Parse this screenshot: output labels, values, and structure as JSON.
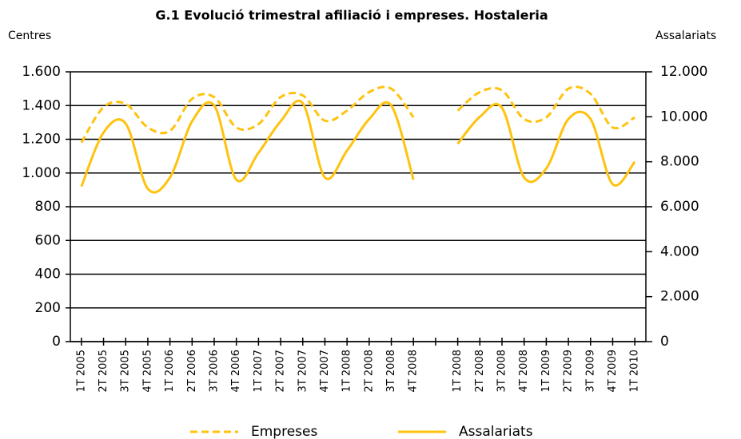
{
  "chart_data": {
    "type": "line",
    "title": "G.1 Evolució trimestral afiliació i empreses. Hostaleria",
    "y_label": "Centres",
    "y2_label": "Assalariats",
    "categories": [
      "1T 2005",
      "2T 2005",
      "3T 2005",
      "4T 2005",
      "1T 2006",
      "2T 2006",
      "3T 2006",
      "4T 2006",
      "1T 2007",
      "2T 2007",
      "3T 2007",
      "4T 2007",
      "1T 2008",
      "2T 2008",
      "3T 2008",
      "4T 2008",
      null,
      "1T 2008",
      "2T 2008",
      "3T 2008",
      "4T 2008",
      "1T 2009",
      "2T 2009",
      "3T 2009",
      "4T 2009",
      "1T 2010"
    ],
    "series": [
      {
        "name": "Empreses",
        "color": "#ffc20e",
        "dashed": true,
        "values": [
          1180,
          1390,
          1410,
          1270,
          1250,
          1440,
          1450,
          1270,
          1290,
          1450,
          1460,
          1310,
          1370,
          1480,
          1500,
          1330,
          null,
          1370,
          1480,
          1490,
          1320,
          1330,
          1500,
          1470,
          1270,
          1330
        ]
      },
      {
        "name": "Assalariats",
        "color": "#ffc20e",
        "axis": "y2",
        "values": [
          6900,
          9300,
          9700,
          6800,
          7300,
          9800,
          10500,
          7200,
          8400,
          9800,
          10600,
          7300,
          8500,
          9900,
          10500,
          7200,
          null,
          8800,
          10000,
          10400,
          7300,
          7700,
          9900,
          9900,
          7000,
          8000
        ]
      }
    ],
    "ylim": [
      0,
      1600
    ],
    "yticks": [
      0,
      200,
      400,
      600,
      800,
      {
        "value": 1000,
        "label": "1.000"
      },
      {
        "value": 1200,
        "label": "1.200"
      },
      {
        "value": 1400,
        "label": "1.400"
      },
      {
        "value": 1600,
        "label": "1.600"
      }
    ],
    "y2lim": [
      0,
      12000
    ],
    "y2ticks": [
      0,
      {
        "value": 2000,
        "label": "2.000"
      },
      {
        "value": 4000,
        "label": "4.000"
      },
      {
        "value": 6000,
        "label": "6.000"
      },
      {
        "value": 8000,
        "label": "8.000"
      },
      {
        "value": 10000,
        "label": "10.000"
      },
      {
        "value": 12000,
        "label": "12.000"
      }
    ],
    "grid": true,
    "legend": "bottom"
  }
}
